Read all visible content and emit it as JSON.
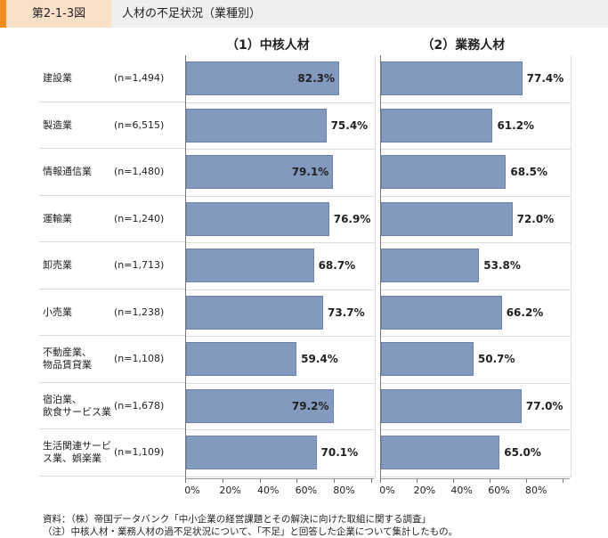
{
  "header": {
    "figure_no": "第2-1-3図",
    "title": "人材の不足状況（業種別）"
  },
  "chart_data": {
    "type": "bar",
    "orientation": "horizontal",
    "categories": [
      "建設業",
      "製造業",
      "情報通信業",
      "運輸業",
      "卸売業",
      "小売業",
      "不動産業、\n物品賃貸業",
      "宿泊業、\n飲食サービス業",
      "生活関連サービ\nス業、娯楽業"
    ],
    "n_labels": [
      "(n=1,494)",
      "(n=6,515)",
      "(n=1,480)",
      "(n=1,240)",
      "(n=1,713)",
      "(n=1,238)",
      "(n=1,108)",
      "(n=1,678)",
      "(n=1,109)"
    ],
    "panels": [
      {
        "title": "（1）中核人材",
        "values": [
          82.3,
          75.4,
          79.1,
          76.9,
          68.7,
          73.7,
          59.4,
          79.2,
          70.1
        ],
        "labels": [
          "82.3%",
          "75.4%",
          "79.1%",
          "76.9%",
          "68.7%",
          "73.7%",
          "59.4%",
          "79.2%",
          "70.1%"
        ],
        "label_inside": [
          true,
          false,
          true,
          false,
          false,
          false,
          false,
          true,
          false
        ]
      },
      {
        "title": "（2）業務人材",
        "values": [
          77.4,
          61.2,
          68.5,
          72.0,
          53.8,
          66.2,
          50.7,
          77.0,
          65.0
        ],
        "labels": [
          "77.4%",
          "61.2%",
          "68.5%",
          "72.0%",
          "53.8%",
          "66.2%",
          "50.7%",
          "77.0%",
          "65.0%"
        ],
        "label_inside": [
          false,
          false,
          false,
          false,
          false,
          false,
          false,
          false,
          false
        ]
      }
    ],
    "xlim": [
      0,
      100
    ],
    "xticks": [
      "0%",
      "20%",
      "40%",
      "60%",
      "80%"
    ],
    "bar_color": "#8499be"
  },
  "notes": [
    "資料：（株）帝国データバンク「中小企業の経営課題とその解決に向けた取組に関する調査」",
    "（注）中核人材・業務人材の過不足状況について、「不足」と回答した企業について集計したもの。"
  ]
}
